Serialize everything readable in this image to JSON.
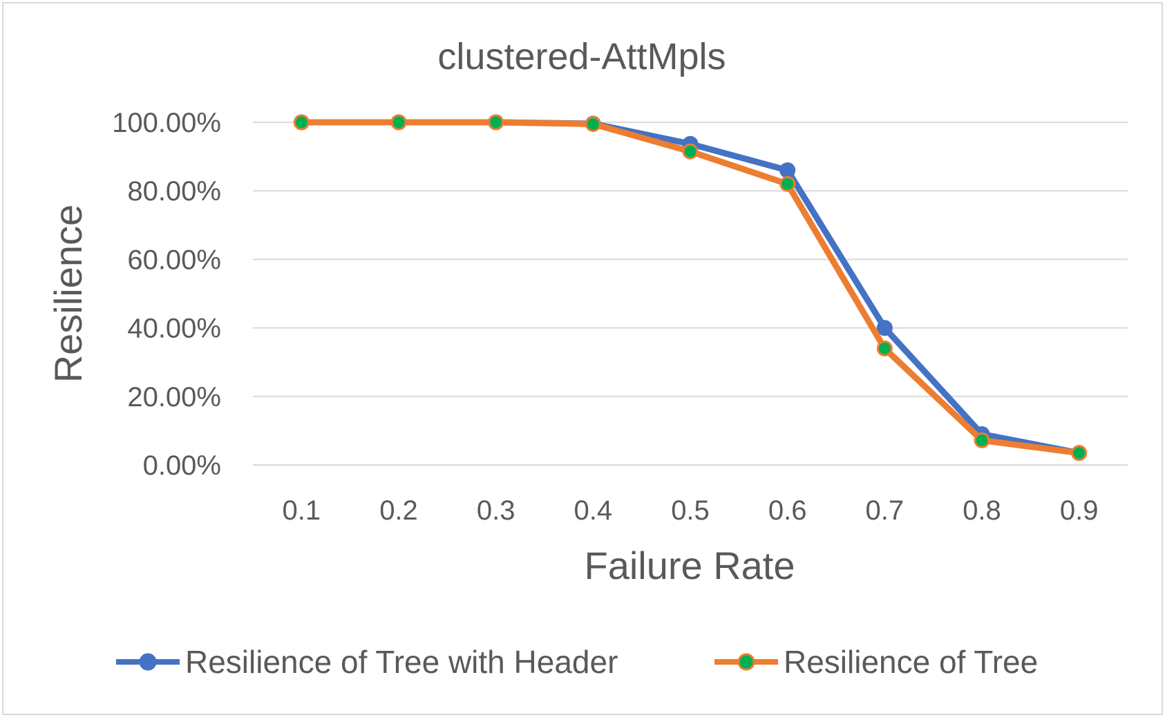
{
  "chart_data": {
    "type": "line",
    "title": "clustered-AttMpls",
    "xlabel": "Failure Rate",
    "ylabel": "Resilience",
    "categories": [
      "0.1",
      "0.2",
      "0.3",
      "0.4",
      "0.5",
      "0.6",
      "0.7",
      "0.8",
      "0.9"
    ],
    "y_ticks": [
      "0.00%",
      "20.00%",
      "40.00%",
      "60.00%",
      "80.00%",
      "100.00%"
    ],
    "ylim": [
      0,
      100
    ],
    "y_unit": "percent",
    "grid": true,
    "legend_position": "bottom",
    "series": [
      {
        "name": "Resilience of Tree with Header",
        "values": [
          100,
          100,
          100,
          99.6,
          93.7,
          86.0,
          40.0,
          9.0,
          3.5
        ],
        "line_color": "#4472C4",
        "marker_color": "#4472C4"
      },
      {
        "name": "Resilience of Tree",
        "values": [
          100,
          100,
          100,
          99.5,
          91.5,
          82.0,
          34.0,
          7.2,
          3.5
        ],
        "line_color": "#ED7D31",
        "marker_color": "#00B050"
      }
    ]
  }
}
